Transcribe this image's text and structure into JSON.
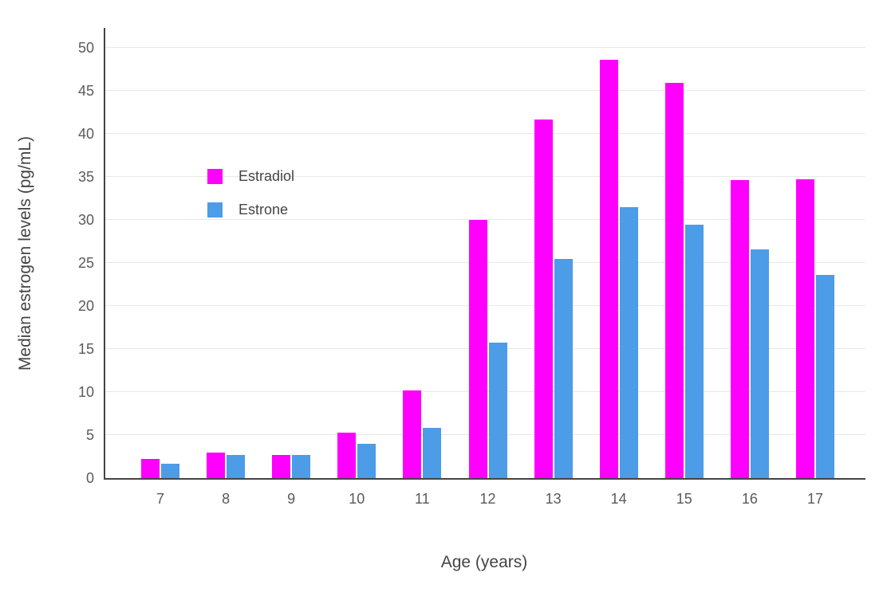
{
  "chart_data": {
    "type": "bar",
    "title": "",
    "xlabel": "Age (years)",
    "ylabel": "Median estrogen levels (pg/mL)",
    "categories": [
      7,
      8,
      9,
      10,
      11,
      12,
      13,
      14,
      15,
      16,
      17
    ],
    "series": [
      {
        "name": "Estradiol",
        "color": "#FF00FF",
        "values": [
          2.2,
          3.0,
          2.7,
          5.3,
          10.2,
          30.0,
          41.7,
          48.6,
          45.9,
          34.6,
          34.7
        ]
      },
      {
        "name": "Estrone",
        "color": "#4C9CE8",
        "values": [
          1.7,
          2.7,
          2.7,
          4.0,
          5.8,
          15.7,
          25.5,
          31.5,
          29.4,
          26.6,
          23.6
        ]
      }
    ],
    "ylim": [
      0,
      52.5
    ],
    "yticks": [
      0,
      5,
      10,
      15,
      20,
      25,
      30,
      35,
      40,
      45,
      50
    ],
    "grid": true,
    "grid_color": "#e8e8e8",
    "axis_color": "#444444",
    "legend_position": "inside-top-left"
  }
}
